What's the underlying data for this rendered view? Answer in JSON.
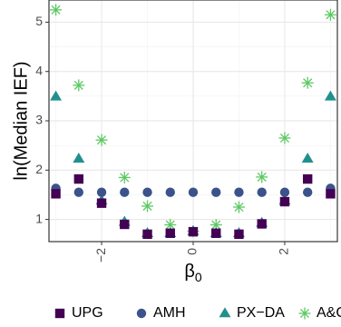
{
  "chart_data": {
    "type": "scatter",
    "title": "",
    "xlabel": "β",
    "xlabel_subscript": "0",
    "ylabel": "ln(Median IEF)",
    "xlim": [
      -3.15,
      3.15
    ],
    "ylim": [
      0.55,
      5.45
    ],
    "xticks": [
      -2,
      0,
      2
    ],
    "xtick_labels": [
      "−2",
      "0",
      "2"
    ],
    "yticks": [
      1,
      2,
      3,
      4,
      5
    ],
    "ytick_labels": [
      "1",
      "2",
      "3",
      "4",
      "5"
    ],
    "grid": true,
    "legend_position": "bottom",
    "series": [
      {
        "name": "UPG",
        "marker": "square",
        "color": "#440154",
        "x": [
          -3,
          -2.5,
          -2,
          -1.5,
          -1,
          -0.5,
          0,
          0.5,
          1,
          1.5,
          2,
          2.5,
          3
        ],
        "y": [
          1.52,
          1.82,
          1.33,
          0.9,
          0.7,
          0.72,
          0.75,
          0.72,
          0.7,
          0.91,
          1.36,
          1.82,
          1.52
        ]
      },
      {
        "name": "AMH",
        "marker": "circle",
        "color": "#3b528b",
        "x": [
          -3,
          -2.5,
          -2,
          -1.5,
          -1,
          -0.5,
          0,
          0.5,
          1,
          1.5,
          2,
          2.5,
          3
        ],
        "y": [
          1.63,
          1.55,
          1.55,
          1.55,
          1.55,
          1.55,
          1.55,
          1.55,
          1.55,
          1.55,
          1.55,
          1.55,
          1.63
        ]
      },
      {
        "name": "PX−DA",
        "marker": "triangle",
        "color": "#21908c",
        "x": [
          -3,
          -2.5,
          -2,
          -1.5,
          -1,
          -0.5,
          0,
          0.5,
          1,
          1.5,
          2,
          2.5,
          3
        ],
        "y": [
          3.49,
          2.23,
          1.38,
          0.95,
          0.72,
          0.72,
          0.76,
          0.72,
          0.72,
          0.93,
          1.38,
          2.23,
          3.49
        ]
      },
      {
        "name": "A&C",
        "marker": "asterisk",
        "color": "#5dc863",
        "x": [
          -3,
          -2.5,
          -2,
          -1.5,
          -1,
          -0.5,
          0,
          0.5,
          1,
          1.5,
          2,
          2.5,
          3
        ],
        "y": [
          5.25,
          3.72,
          2.61,
          1.85,
          1.27,
          0.89,
          0.76,
          0.89,
          1.25,
          1.86,
          2.65,
          3.77,
          5.15
        ]
      }
    ]
  }
}
